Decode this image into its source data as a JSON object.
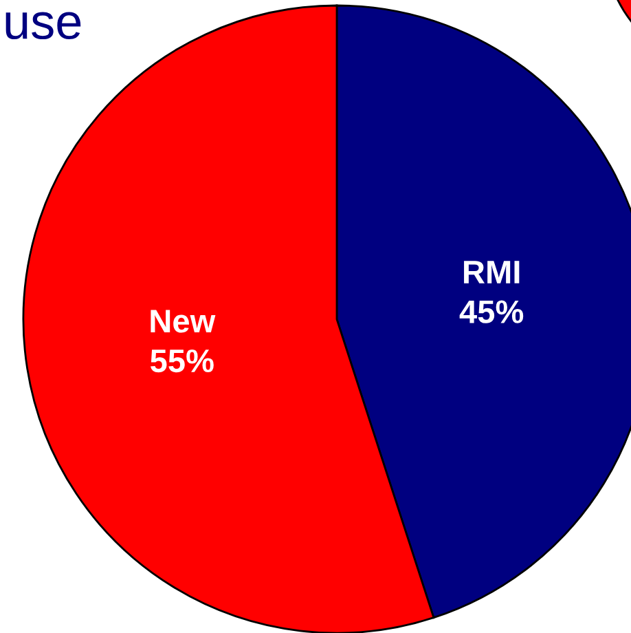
{
  "chart_data": {
    "type": "pie",
    "title": "use",
    "categories": [
      "RMI",
      "New"
    ],
    "values": [
      45,
      55
    ],
    "value_labels": [
      "45%",
      "55%"
    ],
    "colors": [
      "#000080",
      "#ff0000"
    ]
  }
}
